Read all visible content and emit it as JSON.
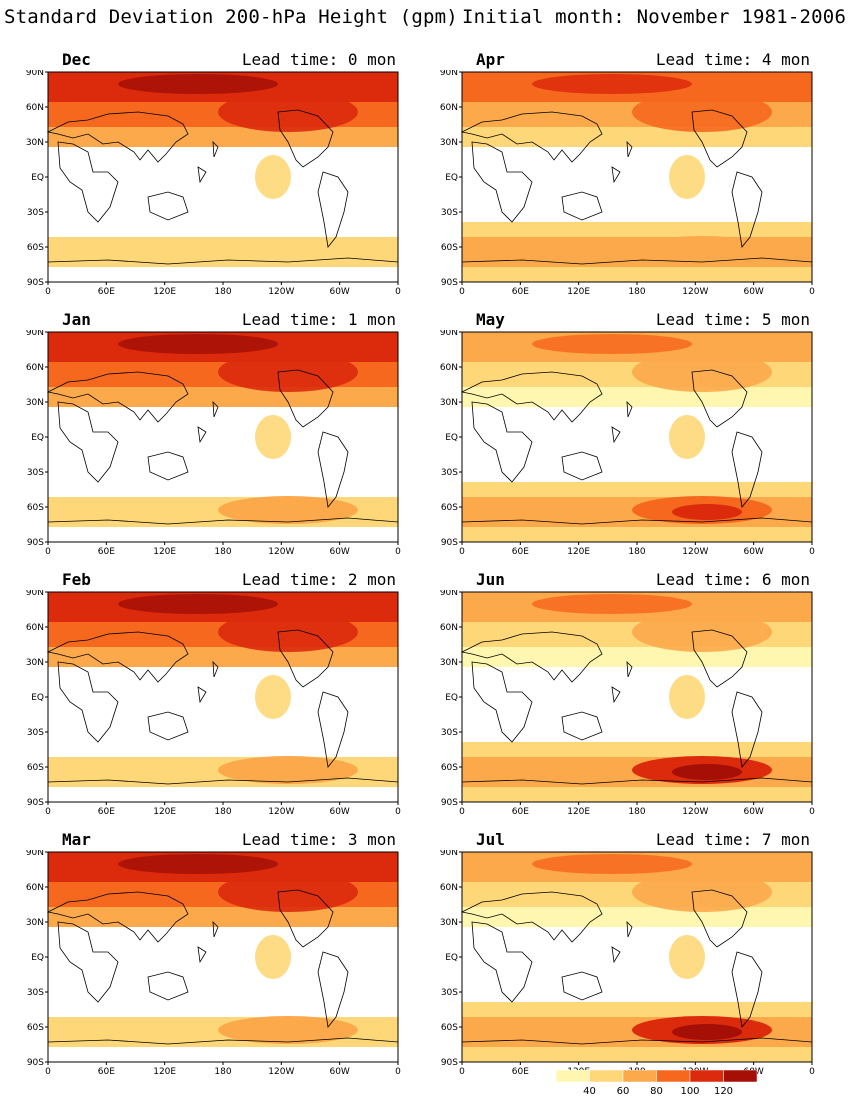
{
  "header": {
    "title": "Standard Deviation 200-hPa Height (gpm)",
    "subtitle": "Initial month: November 1981-2006"
  },
  "axes": {
    "lat_ticks": [
      "90N",
      "60N",
      "30N",
      "EQ",
      "30S",
      "60S",
      "90S"
    ],
    "lon_ticks": [
      "0",
      "60E",
      "120E",
      "180",
      "120W",
      "60W",
      "0"
    ]
  },
  "panels": [
    {
      "month": "Dec",
      "lead": "Lead time: 0 mon",
      "nh": 3,
      "tr": 0,
      "sh": 1,
      "shpeak": 1
    },
    {
      "month": "Apr",
      "lead": "Lead time: 4 mon",
      "nh": 2,
      "tr": 0,
      "sh": 2,
      "shpeak": 2
    },
    {
      "month": "Jan",
      "lead": "Lead time: 1 mon",
      "nh": 3,
      "tr": 0,
      "sh": 1,
      "shpeak": 2
    },
    {
      "month": "May",
      "lead": "Lead time: 5 mon",
      "nh": 1,
      "tr": 0,
      "sh": 2,
      "shpeak": 3
    },
    {
      "month": "Feb",
      "lead": "Lead time: 2 mon",
      "nh": 3,
      "tr": 0,
      "sh": 1,
      "shpeak": 2
    },
    {
      "month": "Jun",
      "lead": "Lead time: 6 mon",
      "nh": 1,
      "tr": 0,
      "sh": 2,
      "shpeak": 4
    },
    {
      "month": "Mar",
      "lead": "Lead time: 3 mon",
      "nh": 3,
      "tr": 0,
      "sh": 1,
      "shpeak": 2
    },
    {
      "month": "Jul",
      "lead": "Lead time: 7 mon",
      "nh": 1,
      "tr": 0,
      "sh": 2,
      "shpeak": 4
    }
  ],
  "colorbar": {
    "labels": [
      "40",
      "60",
      "80",
      "100",
      "120"
    ],
    "colors": [
      "#fff7b0",
      "#fed878",
      "#fca94b",
      "#f6681e",
      "#dc2a0c",
      "#a50f06"
    ]
  }
}
